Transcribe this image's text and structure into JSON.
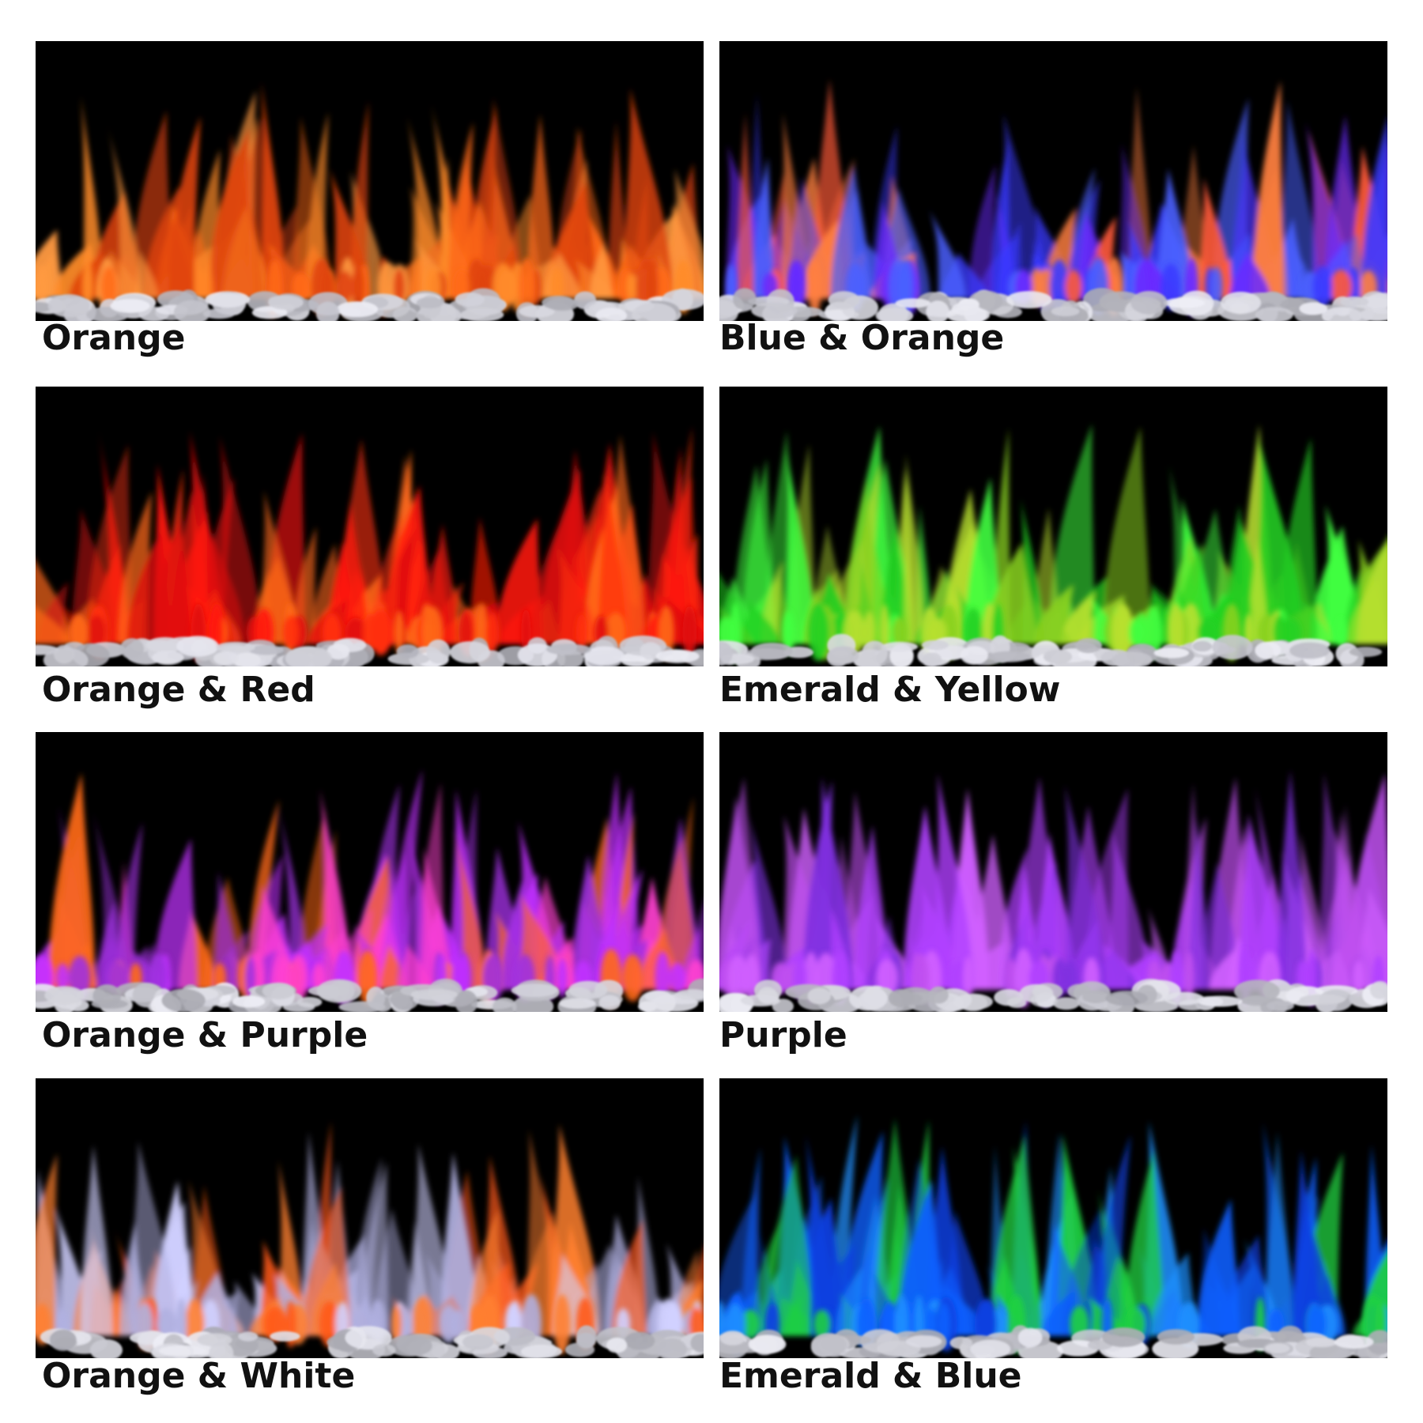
{
  "panels": [
    {
      "label": "Orange"
    },
    {
      "label": "Blue & Orange"
    },
    {
      "label": "Orange & Red"
    },
    {
      "label": "Emerald & Yellow"
    },
    {
      "label": "Orange & Purple"
    },
    {
      "label": "Purple"
    },
    {
      "label": "Orange & White"
    },
    {
      "label": "Emerald & Blue"
    }
  ]
}
